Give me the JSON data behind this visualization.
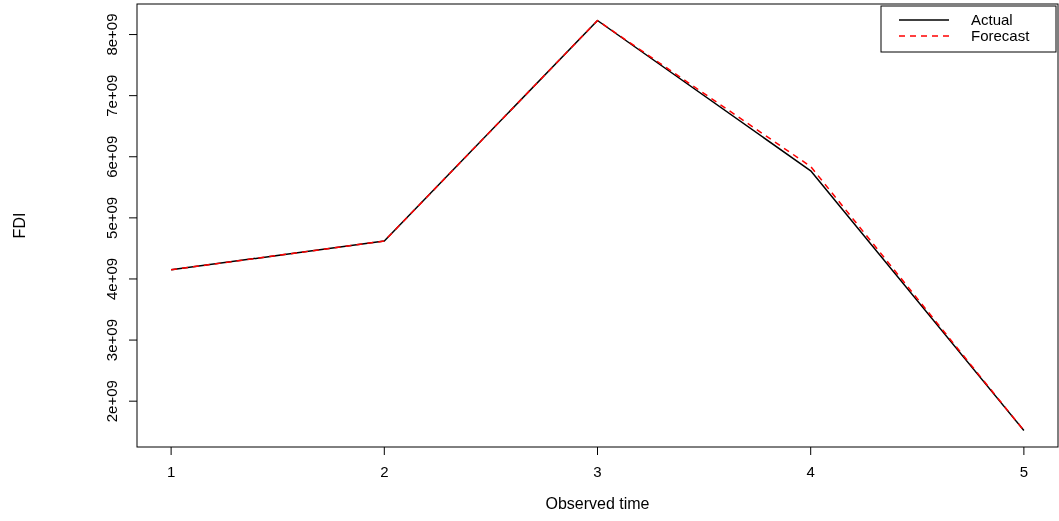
{
  "chart_data": {
    "type": "line",
    "xlabel": "Observed time",
    "ylabel": "FDI",
    "x": [
      1,
      2,
      3,
      4,
      5
    ],
    "series": [
      {
        "name": "Actual",
        "color": "#000000",
        "line_style": "solid",
        "values": [
          4150000000,
          4620000000,
          8230000000,
          5770000000,
          1520000000
        ]
      },
      {
        "name": "Forecast",
        "color": "#ff0000",
        "line_style": "dashed",
        "values": [
          4150000000,
          4620000000,
          8230000000,
          5840000000,
          1520000000
        ]
      }
    ],
    "xlim": [
      0.84,
      5.16
    ],
    "xticks": [
      1,
      2,
      3,
      4,
      5
    ],
    "ylim": [
      1250000000,
      8500000000
    ],
    "yticks": [
      {
        "value": 2000000000,
        "label": "2e+09"
      },
      {
        "value": 3000000000,
        "label": "3e+09"
      },
      {
        "value": 4000000000,
        "label": "4e+09"
      },
      {
        "value": 5000000000,
        "label": "5e+09"
      },
      {
        "value": 6000000000,
        "label": "6e+09"
      },
      {
        "value": 7000000000,
        "label": "7e+09"
      },
      {
        "value": 8000000000,
        "label": "8e+09"
      }
    ],
    "grid": false,
    "legend": "top right"
  }
}
